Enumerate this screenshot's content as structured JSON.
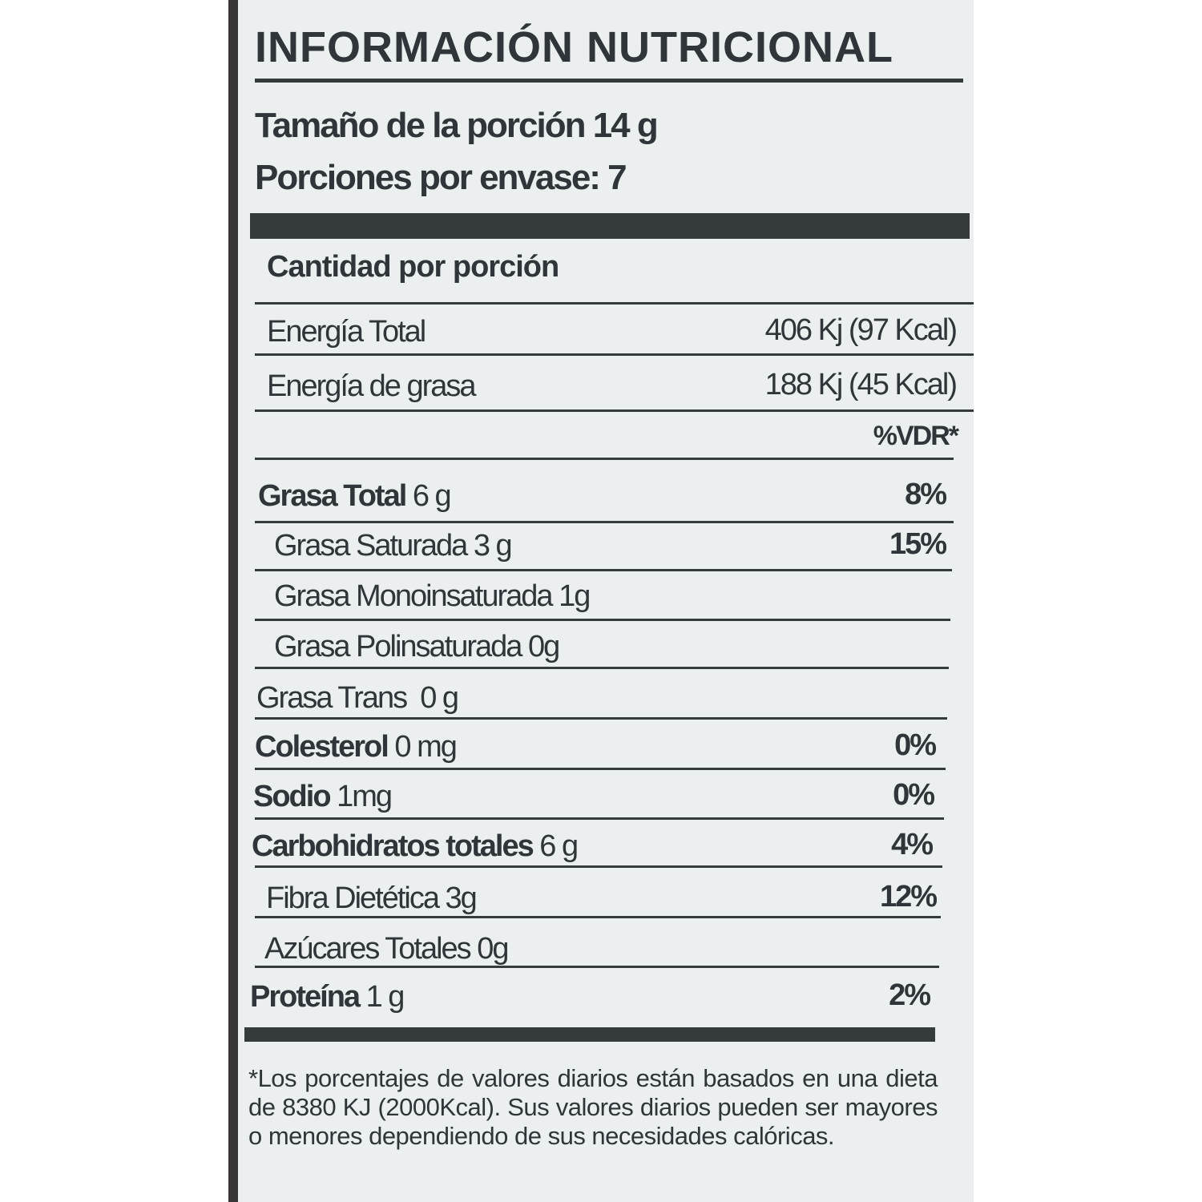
{
  "title": "INFORMACIÓN NUTRICIONAL",
  "serving_size": "Tamaño de la porción 14 g",
  "servings_per_container": "Porciones por envase: 7",
  "amount_per_serving": "Cantidad por porción",
  "energy": [
    {
      "label": "Energía Total",
      "value": "406 Kj (97 Kcal)"
    },
    {
      "label": "Energía de grasa",
      "value": "188 Kj (45 Kcal)"
    }
  ],
  "dv_header": "%VDR*",
  "nutrients": [
    {
      "name": "Grasa Total",
      "amount": " 6 g",
      "dv": "8%",
      "bold": true,
      "indent": 0
    },
    {
      "name": "Grasa Saturada",
      "amount": " 3 g",
      "dv": "15%",
      "bold": false,
      "indent": 1
    },
    {
      "name": "Grasa Monoinsaturada",
      "amount": " 1g",
      "dv": "",
      "bold": false,
      "indent": 1
    },
    {
      "name": "Grasa Polinsaturada",
      "amount": " 0g",
      "dv": "",
      "bold": false,
      "indent": 1
    },
    {
      "name": "Grasa Trans",
      "amount": "  0 g",
      "dv": "",
      "bold": false,
      "indent": 0
    },
    {
      "name": "Colesterol",
      "amount": " 0 mg",
      "dv": "0%",
      "bold": true,
      "indent": 0
    },
    {
      "name": "Sodio",
      "amount": " 1mg",
      "dv": "0%",
      "bold": true,
      "indent": 0
    },
    {
      "name": "Carbohidratos totales",
      "amount": " 6 g",
      "dv": "4%",
      "bold": true,
      "indent": 0
    },
    {
      "name": "Fibra Dietética",
      "amount": " 3g",
      "dv": "12%",
      "bold": false,
      "indent": 1
    },
    {
      "name": "Azúcares Totales",
      "amount": " 0g",
      "dv": "",
      "bold": false,
      "indent": 1
    },
    {
      "name": "Proteína",
      "amount": " 1 g",
      "dv": "2%",
      "bold": true,
      "indent": 0
    }
  ],
  "footnote": "*Los porcentajes de valores diarios están basados en una dieta de 8380 KJ (2000Kcal). Sus valores diarios pueden ser mayores o menores dependiendo de sus necesidades calóricas."
}
